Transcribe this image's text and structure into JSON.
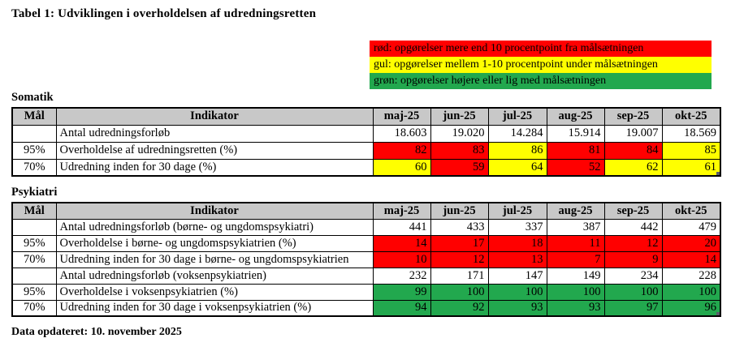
{
  "page": {
    "title": "Tabel 1: Udviklingen i overholdelsen af udredningsretten",
    "footer_note": "Data opdateret: 10. november 2025"
  },
  "colors": {
    "red": "#FF0000",
    "yellow": "#FFFF00",
    "green": "#22A84E",
    "header_bg": "#C8C8C8",
    "border": "#000000"
  },
  "legend": {
    "items": [
      {
        "name": "red",
        "label": "rød: opgørelser mere end 10 procentpoint fra målsætningen",
        "color": "#FF0000"
      },
      {
        "name": "yellow",
        "label": "gul: opgørelser mellem 1-10 procentpoint under målsætningen",
        "color": "#FFFF00"
      },
      {
        "name": "green",
        "label": "grøn: opgørelser højere eller lig med målsætningen",
        "color": "#22A84E"
      }
    ]
  },
  "months": [
    "maj-25",
    "jun-25",
    "jul-25",
    "aug-25",
    "sep-25",
    "okt-25"
  ],
  "tables": [
    {
      "section": "Somatik",
      "headers": {
        "goal": "Mål",
        "indicator": "Indikator"
      },
      "rows": [
        {
          "goal": "",
          "indicator": "Antal udredningsforløb",
          "values": [
            "18.603",
            "19.020",
            "14.284",
            "15.914",
            "19.007",
            "18.569"
          ],
          "colors": [
            "none",
            "none",
            "none",
            "none",
            "none",
            "none"
          ]
        },
        {
          "goal": "95%",
          "indicator": "Overholdelse af udredningsretten (%)",
          "values": [
            "82",
            "83",
            "86",
            "81",
            "84",
            "85"
          ],
          "colors": [
            "red",
            "red",
            "yellow",
            "red",
            "red",
            "yellow"
          ]
        },
        {
          "goal": "70%",
          "indicator": "Udredning inden for 30 dage (%)",
          "values": [
            "60",
            "59",
            "64",
            "52",
            "62",
            "61"
          ],
          "colors": [
            "yellow",
            "red",
            "yellow",
            "red",
            "yellow",
            "yellow"
          ]
        }
      ]
    },
    {
      "section": "Psykiatri",
      "headers": {
        "goal": "Mål",
        "indicator": "Indikator"
      },
      "rows": [
        {
          "goal": "",
          "indicator": "Antal udredningsforløb (børne- og ungdomspsykiatri)",
          "values": [
            "441",
            "433",
            "337",
            "387",
            "442",
            "479"
          ],
          "colors": [
            "none",
            "none",
            "none",
            "none",
            "none",
            "none"
          ]
        },
        {
          "goal": "95%",
          "indicator": "Overholdelse i børne- og ungdomspsykiatrien (%)",
          "values": [
            "14",
            "17",
            "18",
            "11",
            "12",
            "20"
          ],
          "colors": [
            "red",
            "red",
            "red",
            "red",
            "red",
            "red"
          ]
        },
        {
          "goal": "70%",
          "indicator": "Udredning inden for 30 dage i børne- og ungdomspsykiatrien",
          "values": [
            "10",
            "12",
            "13",
            "7",
            "9",
            "14"
          ],
          "colors": [
            "red",
            "red",
            "red",
            "red",
            "red",
            "red"
          ]
        },
        {
          "goal": "",
          "indicator": "Antal udredningsforløb (voksenpsykiatrien)",
          "values": [
            "232",
            "171",
            "147",
            "149",
            "234",
            "228"
          ],
          "colors": [
            "none",
            "none",
            "none",
            "none",
            "none",
            "none"
          ]
        },
        {
          "goal": "95%",
          "indicator": "Overholdelse i voksenpsykiatrien (%)",
          "values": [
            "99",
            "100",
            "100",
            "100",
            "100",
            "100"
          ],
          "colors": [
            "green",
            "green",
            "green",
            "green",
            "green",
            "green"
          ]
        },
        {
          "goal": "70%",
          "indicator": "Udredning inden for 30 dage i voksenpsykiatrien (%)",
          "values": [
            "94",
            "92",
            "93",
            "93",
            "97",
            "96"
          ],
          "colors": [
            "green",
            "green",
            "green",
            "green",
            "green",
            "green"
          ]
        }
      ]
    }
  ]
}
